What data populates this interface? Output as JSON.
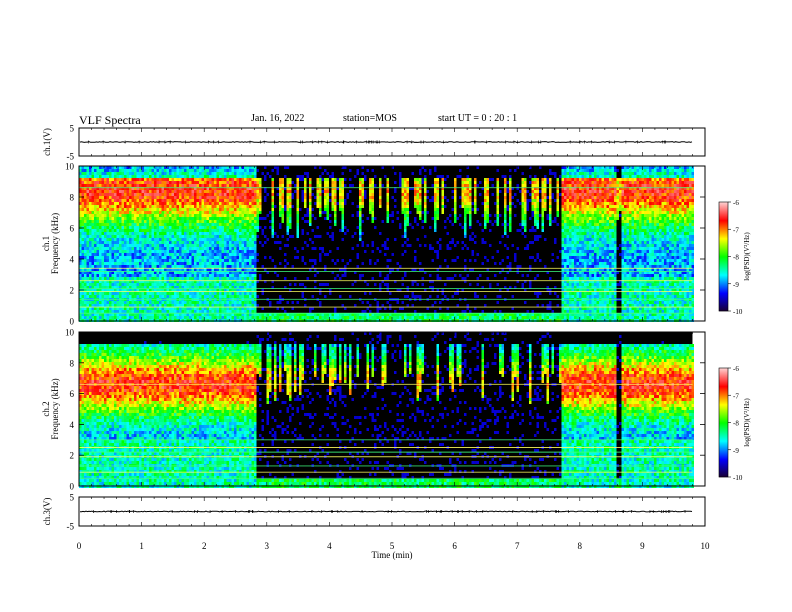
{
  "header": {
    "title": "VLF Spectra",
    "date": "Jan. 16, 2022",
    "station": "station=MOS",
    "start": "start UT =  0 : 20 : 1"
  },
  "colors": {
    "background": "#000000",
    "colormap": [
      "#1a0030",
      "#0000ff",
      "#00ffff",
      "#00ff00",
      "#ffff00",
      "#ff0000",
      "#ffcfcf"
    ]
  },
  "chart_data": [
    {
      "type": "line",
      "id": "ch1_waveform",
      "ylabel": "ch.1(V)",
      "ylim": [
        -5,
        5
      ],
      "yticks": [
        5,
        -5
      ],
      "x": [
        0,
        10
      ],
      "y": [
        0,
        0
      ]
    },
    {
      "type": "heatmap",
      "id": "ch1_spectrogram",
      "ylabel": "ch.1 Frequency (kHz)",
      "ylim": [
        0,
        10
      ],
      "yticks": [
        0,
        2,
        4,
        6,
        8,
        10
      ],
      "xlim": [
        0,
        9.8
      ],
      "colorbar": {
        "label": "log(PSD)(V²/Hz)",
        "range": [
          -10,
          -6
        ],
        "ticks": [
          -6,
          -7,
          -8,
          -9,
          -10
        ]
      },
      "quiet_intervals_min": [
        [
          2.8,
          7.7
        ],
        [
          8.55,
          8.65
        ]
      ],
      "horizontal_lines_khz": [
        0.5,
        0.9,
        1.4,
        1.9,
        2.1,
        2.6,
        3.2,
        3.4,
        8.6
      ]
    },
    {
      "type": "heatmap",
      "id": "ch2_spectrogram",
      "ylabel": "ch.2 Frequency (kHz)",
      "ylim": [
        0,
        10
      ],
      "yticks": [
        0,
        2,
        4,
        6,
        8,
        10
      ],
      "xlim": [
        0,
        9.8
      ],
      "colorbar": {
        "label": "log(PSD)(V²/Hz)",
        "range": [
          -10,
          -6
        ],
        "ticks": [
          -6,
          -7,
          -8,
          -9,
          -10
        ]
      },
      "quiet_intervals_min": [
        [
          2.8,
          7.7
        ],
        [
          8.55,
          8.65
        ]
      ],
      "horizontal_lines_khz": [
        0.5,
        0.9,
        1.3,
        1.9,
        2.2,
        2.5,
        3.0,
        6.6
      ]
    },
    {
      "type": "line",
      "id": "ch3_waveform",
      "ylabel": "ch.3(V)",
      "ylim": [
        -5,
        5
      ],
      "yticks": [
        5,
        -5
      ],
      "x": [
        0,
        10
      ],
      "y": [
        0,
        0
      ]
    }
  ],
  "xaxis": {
    "label": "Time (min)",
    "range": [
      0,
      10
    ],
    "ticks": [
      "0",
      "1",
      "2",
      "3",
      "4",
      "5",
      "6",
      "7",
      "8",
      "9",
      "10"
    ]
  }
}
